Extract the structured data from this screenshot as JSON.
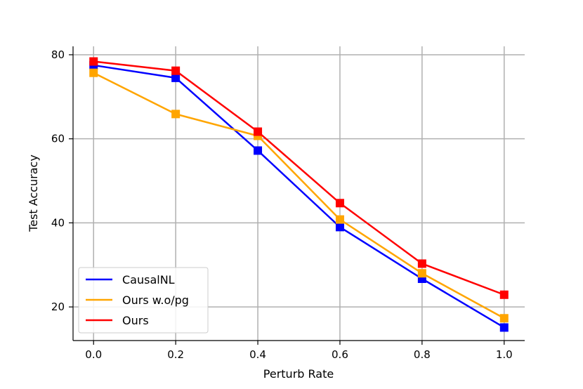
{
  "chart_data": {
    "type": "line",
    "title": "",
    "xlabel": "Perturb Rate",
    "ylabel": "Test Accuracy",
    "x": [
      0.0,
      0.2,
      0.4,
      0.6,
      0.8,
      1.0
    ],
    "x_tick_labels": [
      "0.0",
      "0.2",
      "0.4",
      "0.6",
      "0.8",
      "1.0"
    ],
    "y_ticks": [
      20,
      40,
      60,
      80
    ],
    "y_tick_labels": [
      "20",
      "40",
      "60",
      "80"
    ],
    "xlim": [
      -0.05,
      1.05
    ],
    "ylim": [
      12,
      82
    ],
    "grid": true,
    "legend_position": "lower-left",
    "series": [
      {
        "name": "CausalNL",
        "color": "#0000ff",
        "marker": "square",
        "values": [
          77.5,
          74.5,
          57.2,
          39.0,
          26.7,
          15.1
        ]
      },
      {
        "name": "Ours w.o/pg",
        "color": "#ffa500",
        "marker": "square",
        "values": [
          75.7,
          65.9,
          60.7,
          40.8,
          28.0,
          17.3
        ]
      },
      {
        "name": "Ours",
        "color": "#ff0000",
        "marker": "square",
        "values": [
          78.4,
          76.2,
          61.7,
          44.7,
          30.3,
          22.9
        ]
      }
    ]
  }
}
